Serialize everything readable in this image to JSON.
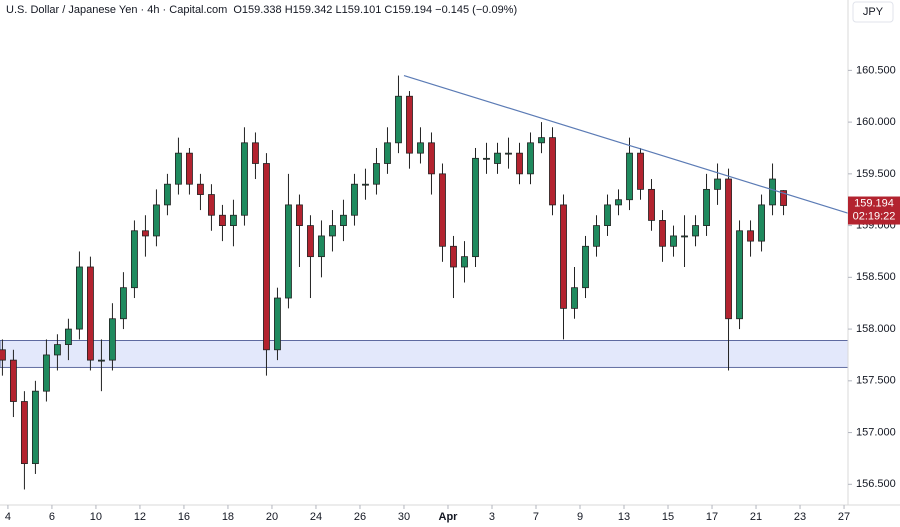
{
  "chart_data": {
    "type": "candlestick",
    "title": "U.S. Dollar / Japanese Yen · 4h · Capital.com",
    "ohlc_text": "O159.338 H159.342 L159.101 C159.194 −0.145 (−0.09%)",
    "currency": "JPY",
    "countdown": "02:19:22",
    "up_color": "#1f8a5e",
    "down_color": "#b3232f",
    "x": [
      -0.25,
      0.25,
      0.75,
      1.25,
      1.75,
      2.25,
      2.75,
      3.25,
      3.75,
      4.25,
      4.75,
      5.25,
      5.75,
      6.25,
      6.75,
      7.25,
      7.75,
      8.25,
      8.75,
      9.25,
      9.75,
      10.25,
      10.75,
      11.25,
      11.75,
      12.25,
      12.75,
      13.25,
      13.75,
      14.25,
      14.75,
      15.25,
      15.75,
      16.25,
      16.75,
      17.25,
      17.75,
      18.25,
      18.75,
      19.25,
      19.75,
      20.25,
      20.75,
      21.25,
      21.75,
      22.25,
      22.75,
      23.25,
      23.75,
      24.25,
      24.75,
      25.25,
      25.75,
      26.25,
      26.75,
      27.25,
      27.75,
      28.25,
      28.75,
      29.25,
      29.75,
      30.25,
      30.75,
      31.25,
      31.75,
      32.25,
      32.75,
      33.25,
      33.75,
      34.25,
      34.75,
      35.25
    ],
    "open": [
      157.8,
      157.7,
      157.3,
      156.7,
      157.4,
      157.75,
      157.85,
      158.0,
      158.6,
      157.7,
      157.7,
      158.1,
      158.4,
      158.95,
      158.9,
      159.2,
      159.4,
      159.7,
      159.4,
      159.3,
      159.1,
      159.0,
      159.1,
      159.8,
      159.6,
      157.8,
      158.3,
      159.2,
      159.0,
      158.7,
      158.9,
      159.0,
      159.1,
      159.4,
      159.4,
      159.6,
      159.8,
      160.25,
      159.7,
      159.8,
      159.5,
      158.8,
      158.6,
      158.7,
      159.65,
      159.6,
      159.7,
      159.7,
      159.5,
      159.8,
      159.85,
      159.2,
      158.2,
      158.4,
      158.8,
      159.0,
      159.2,
      159.25,
      159.7,
      159.35,
      159.05,
      158.8,
      158.9,
      158.9,
      159.0,
      159.35,
      159.45,
      158.1,
      158.95,
      158.85,
      159.2,
      159.338
    ],
    "high": [
      157.9,
      157.8,
      157.4,
      157.5,
      157.9,
      157.95,
      158.1,
      158.75,
      158.7,
      157.9,
      158.25,
      158.55,
      159.05,
      159.1,
      159.35,
      159.5,
      159.85,
      159.75,
      159.5,
      159.4,
      159.2,
      159.25,
      159.95,
      159.9,
      159.7,
      158.4,
      159.5,
      159.3,
      159.1,
      159.05,
      159.15,
      159.25,
      159.5,
      159.55,
      159.75,
      159.95,
      160.45,
      160.3,
      159.95,
      159.9,
      159.6,
      158.9,
      158.85,
      159.75,
      159.8,
      159.8,
      159.85,
      159.8,
      159.9,
      160.0,
      159.95,
      159.3,
      158.6,
      158.9,
      159.1,
      159.3,
      159.35,
      159.85,
      159.75,
      159.45,
      159.15,
      159.0,
      159.1,
      159.1,
      159.5,
      159.6,
      159.55,
      159.05,
      159.05,
      159.3,
      159.6,
      159.342
    ],
    "low": [
      157.55,
      157.15,
      156.45,
      156.6,
      157.3,
      157.6,
      157.7,
      157.9,
      157.6,
      157.4,
      157.6,
      158.0,
      158.3,
      158.7,
      158.8,
      159.1,
      159.3,
      159.3,
      159.15,
      158.95,
      158.85,
      158.8,
      159.0,
      159.45,
      157.55,
      157.7,
      158.2,
      158.6,
      158.3,
      158.5,
      158.75,
      158.85,
      159.0,
      159.25,
      159.3,
      159.5,
      159.7,
      159.55,
      159.6,
      159.3,
      158.65,
      158.3,
      158.45,
      158.6,
      159.5,
      159.5,
      159.55,
      159.4,
      159.4,
      159.7,
      159.1,
      157.9,
      158.1,
      158.3,
      158.7,
      158.9,
      159.1,
      159.15,
      159.25,
      158.95,
      158.65,
      158.7,
      158.6,
      158.8,
      158.9,
      159.2,
      157.6,
      158.0,
      158.7,
      158.75,
      159.1,
      159.101
    ],
    "close": [
      157.7,
      157.3,
      156.7,
      157.4,
      157.75,
      157.85,
      158.0,
      158.6,
      157.7,
      157.7,
      158.1,
      158.4,
      158.95,
      158.9,
      159.2,
      159.4,
      159.7,
      159.4,
      159.3,
      159.1,
      159.0,
      159.1,
      159.8,
      159.6,
      157.8,
      158.3,
      159.2,
      159.0,
      158.7,
      158.9,
      159.0,
      159.1,
      159.4,
      159.4,
      159.6,
      159.8,
      160.25,
      159.7,
      159.8,
      159.5,
      158.8,
      158.6,
      158.7,
      159.65,
      159.65,
      159.7,
      159.7,
      159.5,
      159.8,
      159.85,
      159.2,
      158.2,
      158.4,
      158.8,
      159.0,
      159.2,
      159.25,
      159.7,
      159.35,
      159.05,
      158.8,
      158.9,
      158.9,
      159.0,
      159.35,
      159.45,
      158.1,
      158.95,
      158.85,
      159.2,
      159.45,
      159.194
    ],
    "trendline": {
      "x": [
        18.0,
        38.18
      ],
      "y": [
        160.45,
        159.12
      ],
      "color": "#5b7bb5"
    },
    "zone": [
      157.63,
      157.89
    ],
    "zone_color": "#e3e8fb",
    "xlim": [
      -0.36,
      38.18
    ],
    "ylim": [
      156.3,
      161.18
    ],
    "xticks": [
      {
        "value": 0,
        "label": "4"
      },
      {
        "value": 2,
        "label": "6"
      },
      {
        "value": 4,
        "label": "10"
      },
      {
        "value": 6,
        "label": "12"
      },
      {
        "value": 8,
        "label": "16"
      },
      {
        "value": 10,
        "label": "18"
      },
      {
        "value": 12,
        "label": "20"
      },
      {
        "value": 14,
        "label": "24"
      },
      {
        "value": 16,
        "label": "26"
      },
      {
        "value": 18,
        "label": "30"
      },
      {
        "value": 20,
        "label": "Apr"
      },
      {
        "value": 22,
        "label": "3"
      },
      {
        "value": 24,
        "label": "7"
      },
      {
        "value": 26,
        "label": "9"
      },
      {
        "value": 28,
        "label": "13"
      },
      {
        "value": 30,
        "label": "15"
      },
      {
        "value": 32,
        "label": "17"
      },
      {
        "value": 34,
        "label": "21"
      },
      {
        "value": 36,
        "label": "23"
      },
      {
        "value": 38,
        "label": "27"
      }
    ],
    "yticks": [
      {
        "value": 156.5,
        "label": "156.500"
      },
      {
        "value": 157,
        "label": "157.000"
      },
      {
        "value": 157.5,
        "label": "157.500"
      },
      {
        "value": 158,
        "label": "158.000"
      },
      {
        "value": 158.5,
        "label": "158.500"
      },
      {
        "value": 159,
        "label": "159.000"
      },
      {
        "value": 159.5,
        "label": "159.500"
      },
      {
        "value": 160,
        "label": "160.000"
      },
      {
        "value": 160.5,
        "label": "160.500"
      }
    ]
  }
}
